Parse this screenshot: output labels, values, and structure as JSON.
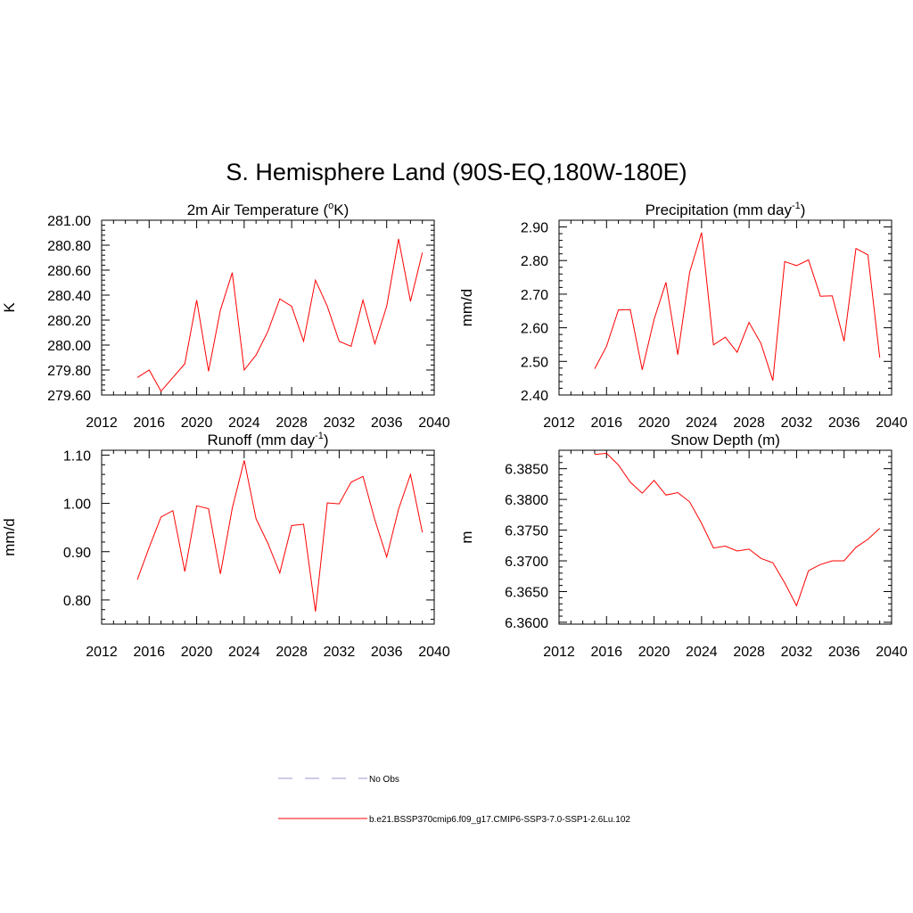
{
  "figure_title": "S. Hemisphere Land (90S-EQ,180W-180E)",
  "colors": {
    "series": "#ff0000",
    "obs": "#9999cc",
    "axis": "#000000"
  },
  "legend": [
    {
      "label": "No Obs",
      "style": "dashed",
      "color": "#9999cc"
    },
    {
      "label": "b.e21.BSSP370cmip6.f09_g17.CMIP6-SSP3-7.0-SSP1-2.6Lu.102",
      "style": "solid",
      "color": "#ff0000"
    }
  ],
  "chart_data": [
    {
      "type": "line",
      "title": "2m Air Temperature (",
      "title_sup": "o",
      "title_after": "K)",
      "ylabel": "K",
      "xlim": [
        2012,
        2040
      ],
      "ylim": [
        279.6,
        281.0
      ],
      "xticks": [
        2012,
        2016,
        2020,
        2024,
        2028,
        2032,
        2036,
        2040
      ],
      "yticks": [
        279.6,
        279.8,
        280.0,
        280.2,
        280.4,
        280.6,
        280.8,
        281.0
      ],
      "ydecimals": 2,
      "x": [
        2015,
        2016,
        2017,
        2018,
        2019,
        2020,
        2021,
        2022,
        2023,
        2024,
        2025,
        2026,
        2027,
        2028,
        2029,
        2030,
        2031,
        2032,
        2033,
        2034,
        2035,
        2036,
        2037,
        2038,
        2039
      ],
      "series": [
        {
          "values": [
            279.74,
            279.8,
            279.63,
            279.74,
            279.85,
            280.36,
            279.79,
            280.28,
            280.58,
            279.8,
            279.92,
            280.11,
            280.37,
            280.31,
            280.03,
            280.52,
            280.31,
            280.03,
            279.99,
            280.36,
            280.01,
            280.31,
            280.85,
            280.35,
            280.74
          ]
        }
      ]
    },
    {
      "type": "line",
      "title": "Precipitation (mm day",
      "title_sup": "-1",
      "title_after": ")",
      "ylabel": "mm/d",
      "xlim": [
        2012,
        2040
      ],
      "ylim": [
        2.4,
        2.92
      ],
      "xticks": [
        2012,
        2016,
        2020,
        2024,
        2028,
        2032,
        2036,
        2040
      ],
      "yticks": [
        2.4,
        2.5,
        2.6,
        2.7,
        2.8,
        2.9
      ],
      "ydecimals": 2,
      "x": [
        2015,
        2016,
        2017,
        2018,
        2019,
        2020,
        2021,
        2022,
        2023,
        2024,
        2025,
        2026,
        2027,
        2028,
        2029,
        2030,
        2031,
        2032,
        2033,
        2034,
        2035,
        2036,
        2037,
        2038,
        2039
      ],
      "series": [
        {
          "values": [
            2.478,
            2.545,
            2.653,
            2.654,
            2.475,
            2.625,
            2.735,
            2.52,
            2.765,
            2.883,
            2.549,
            2.572,
            2.527,
            2.616,
            2.553,
            2.443,
            2.797,
            2.785,
            2.802,
            2.694,
            2.695,
            2.56,
            2.836,
            2.817,
            2.511
          ]
        }
      ]
    },
    {
      "type": "line",
      "title": "Runoff (mm day",
      "title_sup": "-1",
      "title_after": ")",
      "ylabel": "mm/d",
      "xlim": [
        2012,
        2040
      ],
      "ylim": [
        0.75,
        1.11
      ],
      "xticks": [
        2012,
        2016,
        2020,
        2024,
        2028,
        2032,
        2036,
        2040
      ],
      "yticks": [
        0.8,
        0.9,
        1.0,
        1.1
      ],
      "ydecimals": 2,
      "x": [
        2015,
        2016,
        2017,
        2018,
        2019,
        2020,
        2021,
        2022,
        2023,
        2024,
        2025,
        2026,
        2027,
        2028,
        2029,
        2030,
        2031,
        2032,
        2033,
        2034,
        2035,
        2036,
        2037,
        2038,
        2039
      ],
      "series": [
        {
          "values": [
            0.842,
            0.909,
            0.972,
            0.985,
            0.859,
            0.995,
            0.989,
            0.854,
            0.99,
            1.089,
            0.968,
            0.917,
            0.856,
            0.954,
            0.957,
            0.776,
            1.001,
            0.999,
            1.044,
            1.056,
            0.966,
            0.889,
            0.988,
            1.06,
            0.94
          ]
        }
      ]
    },
    {
      "type": "line",
      "title": "Snow Depth (m)",
      "title_sup": "",
      "title_after": "",
      "ylabel": "m",
      "xlim": [
        2012,
        2040
      ],
      "ylim": [
        6.3597,
        6.388
      ],
      "xticks": [
        2012,
        2016,
        2020,
        2024,
        2028,
        2032,
        2036,
        2040
      ],
      "yticks": [
        6.36,
        6.365,
        6.37,
        6.375,
        6.38,
        6.385
      ],
      "ydecimals": 4,
      "x": [
        2015,
        2016,
        2017,
        2018,
        2019,
        2020,
        2021,
        2022,
        2023,
        2024,
        2025,
        2026,
        2027,
        2028,
        2029,
        2030,
        2031,
        2032,
        2033,
        2034,
        2035,
        2036,
        2037,
        2038,
        2039
      ],
      "series": [
        {
          "values": [
            6.3873,
            6.3875,
            6.3856,
            6.3828,
            6.381,
            6.3831,
            6.3807,
            6.3811,
            6.3796,
            6.3761,
            6.3721,
            6.3724,
            6.3716,
            6.3719,
            6.3704,
            6.3697,
            6.3664,
            6.3627,
            6.3684,
            6.3694,
            6.37,
            6.37,
            6.3722,
            6.3735,
            6.3753
          ]
        }
      ]
    }
  ]
}
